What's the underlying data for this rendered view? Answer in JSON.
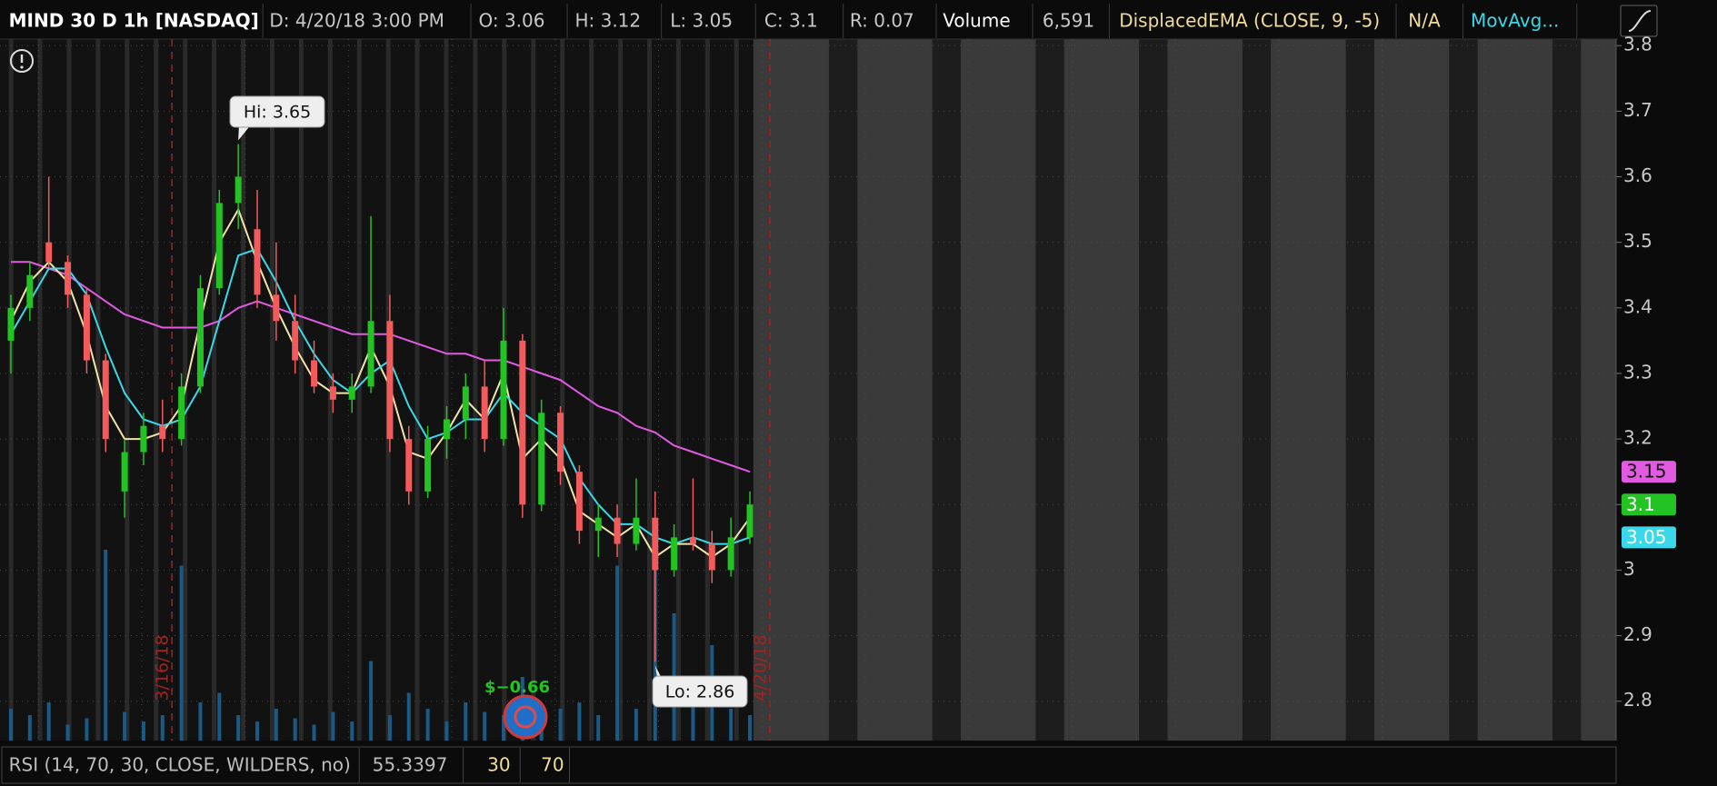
{
  "header": {
    "cells": [
      "MIND 30 D 1h [NASDAQ]",
      "D:  4/20/18 3:00 PM",
      "O:  3.06",
      "H:  3.12",
      "L:  3.05",
      "C:  3.1",
      "R:  0.07",
      "Volume",
      "6,591",
      "DisplacedEMA (CLOSE, 9, -5)",
      "N/A",
      "MovAvg..."
    ]
  },
  "chart_data": {
    "type": "candlestick",
    "open": [
      3.35,
      3.4,
      3.5,
      3.47,
      3.42,
      3.32,
      3.12,
      3.18,
      3.22,
      3.2,
      3.28,
      3.43,
      3.56,
      3.52,
      3.42,
      3.38,
      3.32,
      3.28,
      3.26,
      3.28,
      3.38,
      3.2,
      3.12,
      3.2,
      3.23,
      3.28,
      3.2,
      3.35,
      3.1,
      3.24,
      3.15,
      3.06,
      3.08,
      3.04,
      3.08,
      3.0,
      3.05,
      3.04,
      3.0,
      3.05
    ],
    "high": [
      3.42,
      3.47,
      3.6,
      3.48,
      3.43,
      3.33,
      3.2,
      3.24,
      3.26,
      3.3,
      3.45,
      3.58,
      3.65,
      3.58,
      3.5,
      3.42,
      3.35,
      3.3,
      3.3,
      3.54,
      3.42,
      3.22,
      3.22,
      3.25,
      3.3,
      3.32,
      3.4,
      3.36,
      3.26,
      3.25,
      3.16,
      3.1,
      3.1,
      3.14,
      3.12,
      3.07,
      3.14,
      3.06,
      3.08,
      3.12
    ],
    "low": [
      3.3,
      3.38,
      3.46,
      3.4,
      3.3,
      3.18,
      3.08,
      3.16,
      3.18,
      3.19,
      3.27,
      3.42,
      3.52,
      3.4,
      3.35,
      3.3,
      3.27,
      3.24,
      3.24,
      3.27,
      3.18,
      3.1,
      3.11,
      3.17,
      3.2,
      3.18,
      3.19,
      3.08,
      3.09,
      3.13,
      3.04,
      3.02,
      3.02,
      3.03,
      2.86,
      2.99,
      3.03,
      2.98,
      2.99,
      3.04
    ],
    "close": [
      3.4,
      3.45,
      3.47,
      3.42,
      3.32,
      3.2,
      3.18,
      3.22,
      3.2,
      3.28,
      3.43,
      3.56,
      3.6,
      3.42,
      3.38,
      3.32,
      3.28,
      3.26,
      3.28,
      3.38,
      3.2,
      3.12,
      3.2,
      3.23,
      3.28,
      3.2,
      3.35,
      3.1,
      3.24,
      3.15,
      3.06,
      3.08,
      3.04,
      3.08,
      3.0,
      3.05,
      3.04,
      3.0,
      3.05,
      3.1
    ],
    "volume": [
      10,
      8,
      12,
      5,
      7,
      60,
      9,
      6,
      8,
      55,
      12,
      15,
      8,
      6,
      10,
      7,
      5,
      9,
      6,
      25,
      8,
      15,
      10,
      6,
      12,
      9,
      8,
      20,
      7,
      10,
      12,
      8,
      55,
      10,
      60,
      40,
      15,
      30,
      10,
      8
    ],
    "up_color": "#22c322",
    "down_color": "#f25a5c",
    "volume_color": "#1b5a85",
    "lines": [
      {
        "color": "#e15ae1",
        "values": [
          3.47,
          3.47,
          3.46,
          3.45,
          3.43,
          3.41,
          3.39,
          3.38,
          3.37,
          3.37,
          3.37,
          3.38,
          3.4,
          3.41,
          3.4,
          3.39,
          3.38,
          3.37,
          3.36,
          3.36,
          3.36,
          3.35,
          3.34,
          3.33,
          3.33,
          3.32,
          3.32,
          3.31,
          3.3,
          3.29,
          3.27,
          3.25,
          3.24,
          3.22,
          3.21,
          3.19,
          3.18,
          3.17,
          3.16,
          3.15
        ]
      },
      {
        "color": "#f3e3a6",
        "values": [
          3.38,
          3.44,
          3.47,
          3.44,
          3.36,
          3.25,
          3.2,
          3.2,
          3.21,
          3.25,
          3.38,
          3.5,
          3.55,
          3.47,
          3.4,
          3.34,
          3.29,
          3.27,
          3.27,
          3.34,
          3.28,
          3.18,
          3.17,
          3.21,
          3.26,
          3.23,
          3.3,
          3.17,
          3.2,
          3.17,
          3.09,
          3.07,
          3.05,
          3.07,
          3.02,
          3.04,
          3.04,
          3.02,
          3.04,
          3.08
        ]
      },
      {
        "color": "#3ad8e8",
        "values": [
          3.36,
          3.41,
          3.46,
          3.46,
          3.42,
          3.34,
          3.27,
          3.23,
          3.22,
          3.23,
          3.28,
          3.38,
          3.48,
          3.49,
          3.44,
          3.38,
          3.33,
          3.29,
          3.27,
          3.3,
          3.32,
          3.25,
          3.2,
          3.21,
          3.23,
          3.23,
          3.27,
          3.24,
          3.22,
          3.2,
          3.14,
          3.1,
          3.07,
          3.07,
          3.05,
          3.04,
          3.05,
          3.04,
          3.04,
          3.05
        ]
      }
    ],
    "ylim": [
      2.74,
      3.81
    ],
    "yticks": [
      2.8,
      2.9,
      3,
      3.1,
      3.2,
      3.3,
      3.4,
      3.5,
      3.6,
      3.7,
      3.8
    ],
    "grid": true,
    "hi_label": "Hi: 3.65",
    "lo_label": "Lo: 2.86",
    "dividend_label": "$−0.66",
    "date_markers": [
      "3/16/18",
      "4/20/18"
    ],
    "badges": [
      {
        "value": 3.15,
        "color": "#e15ae1"
      },
      {
        "value": 3.1,
        "color": "#22c322"
      },
      {
        "value": 3.05,
        "color": "#3ad8e8"
      }
    ]
  },
  "footer": {
    "cells": [
      "RSI (14, 70, 30, CLOSE, WILDERS, no)",
      "55.3397",
      "30",
      "70"
    ]
  }
}
